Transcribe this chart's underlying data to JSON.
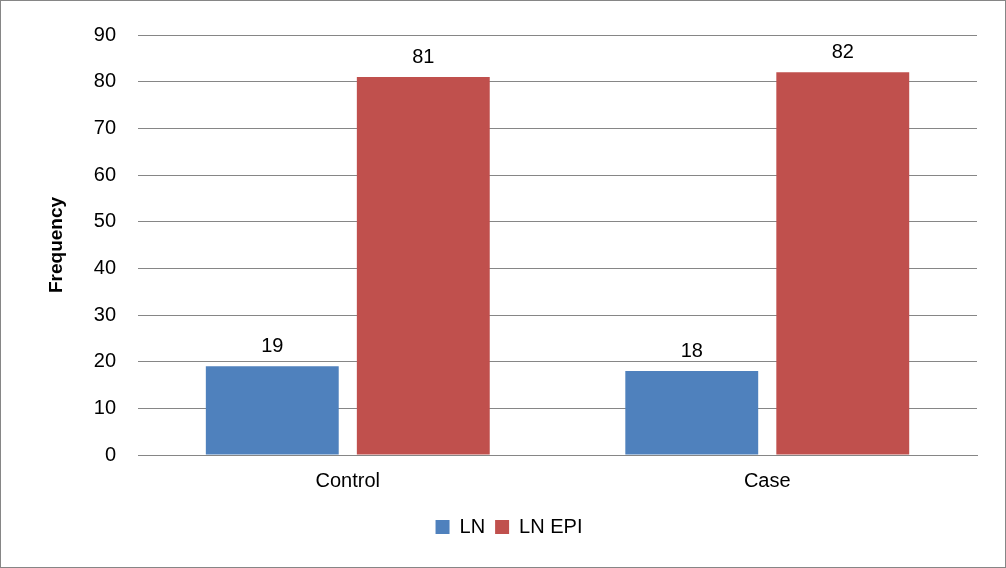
{
  "chart_data": {
    "type": "bar",
    "ylabel": "Frequency",
    "categories": [
      "Control",
      "Case"
    ],
    "series": [
      {
        "name": "LN",
        "color": "#4f81bd",
        "values": [
          19,
          18
        ]
      },
      {
        "name": "LN EPI",
        "color": "#c0504d",
        "values": [
          81,
          82
        ]
      }
    ],
    "ylim": [
      0,
      90
    ],
    "yticks": [
      0,
      10,
      20,
      30,
      40,
      50,
      60,
      70,
      80,
      90
    ],
    "grid": "y",
    "legend": "bottom",
    "data_labels": true
  }
}
